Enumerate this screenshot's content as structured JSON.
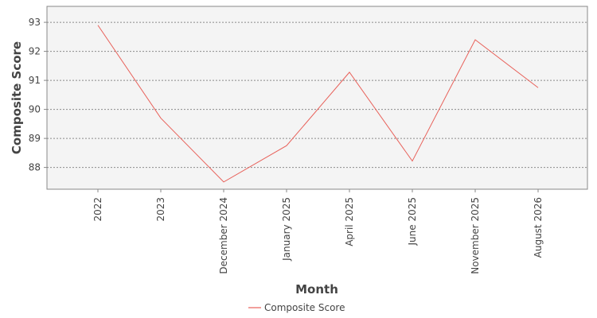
{
  "chart_data": {
    "type": "line",
    "title": "",
    "xlabel": "Month",
    "ylabel": "Composite Score",
    "categories": [
      "2022",
      "2023",
      "December 2024",
      "January 2025",
      "April 2025",
      "June 2025",
      "November 2025",
      "August 2026"
    ],
    "series": [
      {
        "name": "Composite Score",
        "color": "#e8615a",
        "values": [
          92.9,
          89.7,
          87.5,
          88.75,
          91.28,
          88.22,
          92.4,
          90.75
        ]
      }
    ],
    "yticks": [
      88,
      89,
      90,
      91,
      92,
      93
    ],
    "ylim": [
      87.25,
      93.55
    ],
    "grid": true,
    "legend": "bottom-center",
    "plot_background": "#f4f4f4"
  }
}
